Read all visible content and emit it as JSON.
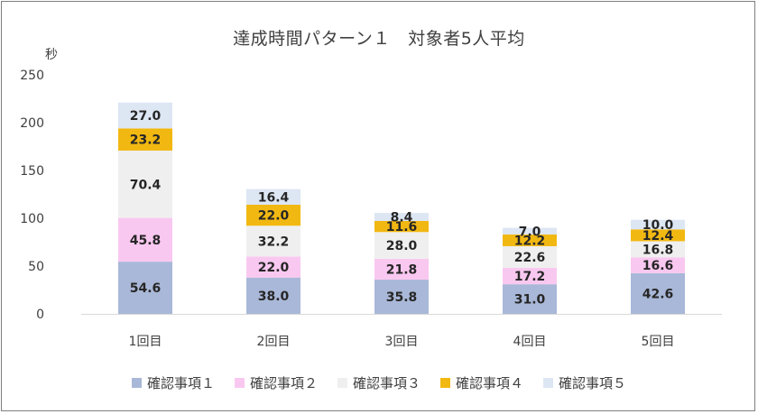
{
  "chart_data": {
    "type": "bar",
    "stacked": true,
    "title": "達成時間パターン１　対象者5人平均",
    "ylabel": "秒",
    "xlabel": "",
    "ylim": [
      0,
      250
    ],
    "yticks": [
      "0",
      "50",
      "100",
      "150",
      "200",
      "250"
    ],
    "categories": [
      "1回目",
      "2回目",
      "3回目",
      "4回目",
      "5回目"
    ],
    "series": [
      {
        "name": "確認事項１",
        "color": "#a9b8d8",
        "values": [
          54.6,
          38.0,
          35.8,
          31.0,
          42.6
        ],
        "labels": [
          "54.6",
          "38.0",
          "35.8",
          "31.0",
          "42.6"
        ]
      },
      {
        "name": "確認事項２",
        "color": "#f9c8f0",
        "values": [
          45.8,
          22.0,
          21.8,
          17.2,
          16.6
        ],
        "labels": [
          "45.8",
          "22.0",
          "21.8",
          "17.2",
          "16.6"
        ]
      },
      {
        "name": "確認事項３",
        "color": "#efefef",
        "values": [
          70.4,
          32.2,
          28.0,
          22.6,
          16.8
        ],
        "labels": [
          "70.4",
          "32.2",
          "28.0",
          "22.6",
          "16.8"
        ]
      },
      {
        "name": "確認事項４",
        "color": "#f2b812",
        "values": [
          23.2,
          22.0,
          11.6,
          12.2,
          12.4
        ],
        "labels": [
          "23.2",
          "22.0",
          "11.6",
          "12.2",
          "12.4"
        ]
      },
      {
        "name": "確認事項５",
        "color": "#dde6f3",
        "values": [
          27.0,
          16.4,
          8.4,
          7.0,
          10.0
        ],
        "labels": [
          "27.0",
          "16.4",
          "8.4",
          "7.0",
          "10.0"
        ]
      }
    ],
    "grid": false,
    "legend_position": "bottom"
  }
}
